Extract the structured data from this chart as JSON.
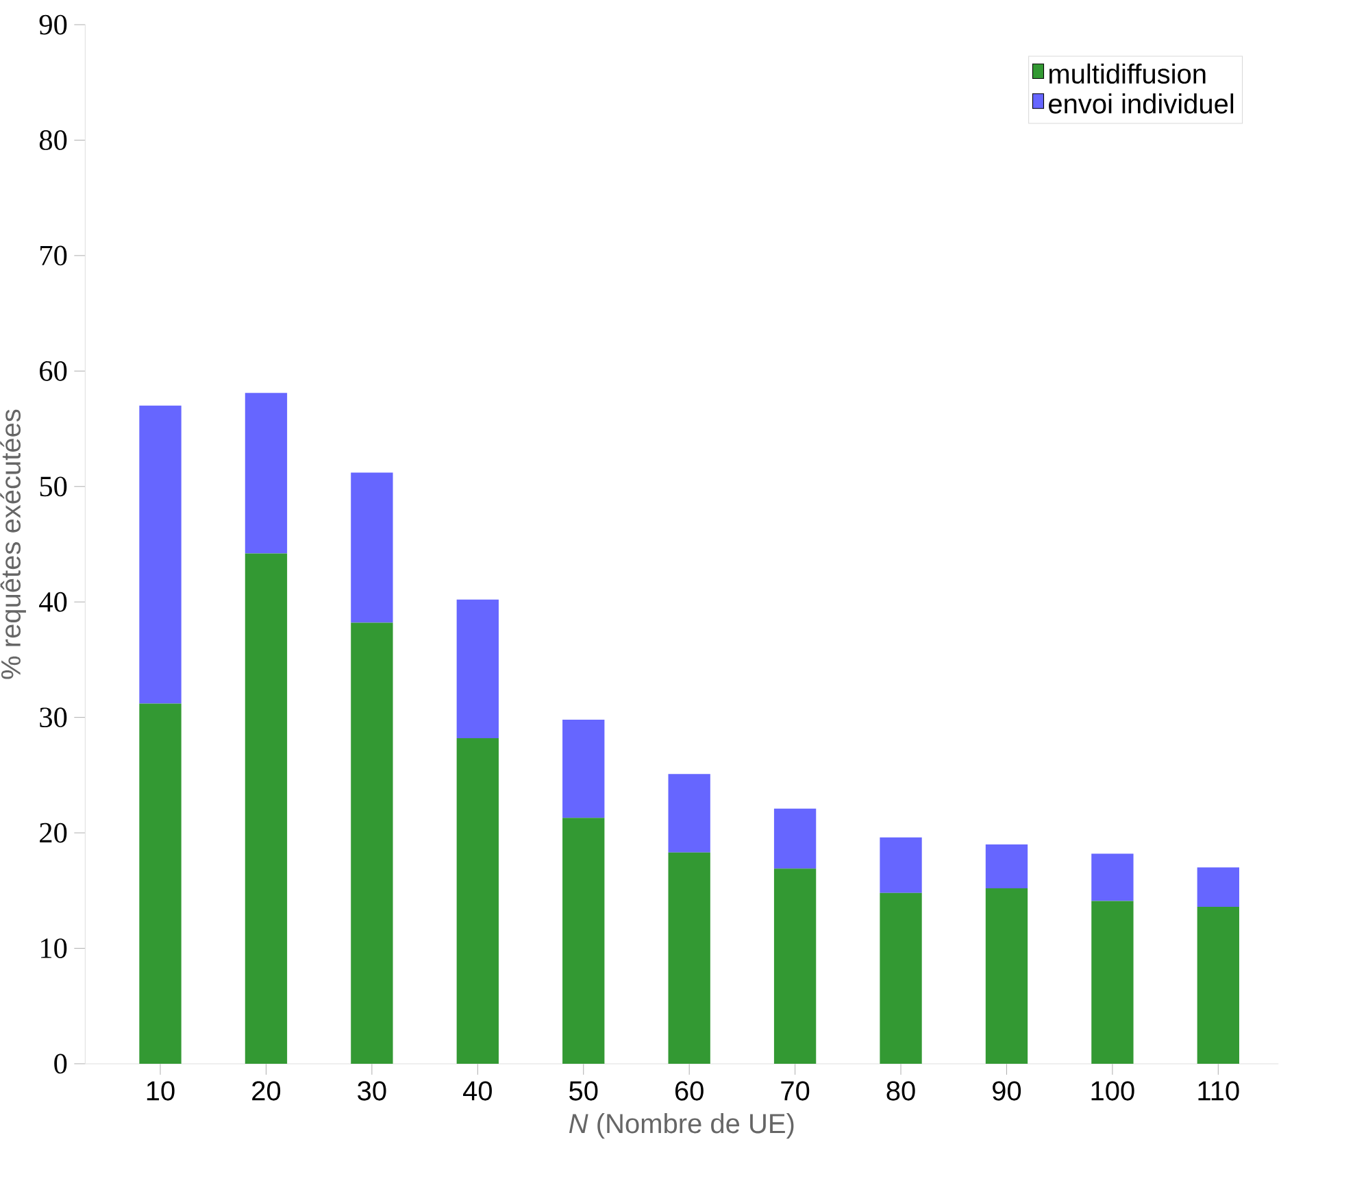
{
  "chart_data": {
    "type": "bar",
    "stacked": true,
    "xlabel": "*N* (Nombre de UE)",
    "ylabel": "% requêtes exécutées",
    "categories": [
      "10",
      "20",
      "30",
      "40",
      "50",
      "60",
      "70",
      "80",
      "90",
      "100",
      "110"
    ],
    "series": [
      {
        "name": "multidiffusion",
        "color": "#339933",
        "values": [
          31.2,
          44.2,
          38.2,
          28.2,
          21.3,
          18.3,
          16.9,
          14.8,
          15.2,
          14.1,
          13.6
        ]
      },
      {
        "name": "envoi individuel",
        "color": "#6666ff",
        "values": [
          25.8,
          13.9,
          13.0,
          12.0,
          8.5,
          6.8,
          5.2,
          4.8,
          3.8,
          4.1,
          3.4
        ]
      }
    ],
    "ylim": [
      0,
      90
    ],
    "yticks": [
      0,
      10,
      20,
      30,
      40,
      50,
      60,
      70,
      80,
      90
    ],
    "legend": "top right"
  }
}
